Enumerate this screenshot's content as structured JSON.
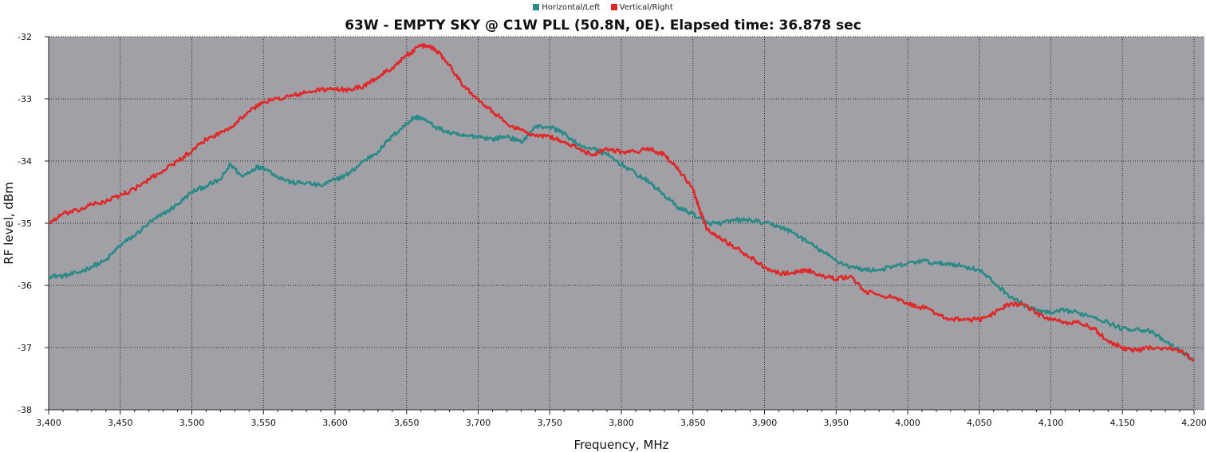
{
  "chart_data": {
    "type": "line",
    "title": "63W - EMPTY SKY @ C1W PLL (50.8N, 0E). Elapsed time: 36.878 sec",
    "xlabel": "Frequency, MHz",
    "ylabel": "RF level, dBm",
    "xlim": [
      3400,
      4200
    ],
    "ylim": [
      -38,
      -32
    ],
    "x_ticks": [
      3400,
      3450,
      3500,
      3550,
      3600,
      3650,
      3700,
      3750,
      3800,
      3850,
      3900,
      3950,
      4000,
      4050,
      4100,
      4150,
      4200
    ],
    "x_tick_labels": [
      "3,400",
      "3,450",
      "3,500",
      "3,550",
      "3,600",
      "3,650",
      "3,700",
      "3,750",
      "3,800",
      "3,850",
      "3,900",
      "3,950",
      "4,000",
      "4,050",
      "4,100",
      "4,150",
      "4,200"
    ],
    "y_ticks": [
      -32,
      -33,
      -34,
      -35,
      -36,
      -37,
      -38
    ],
    "y_tick_labels": [
      "-32",
      "-33",
      "-34",
      "-35",
      "-36",
      "-37",
      "-38"
    ],
    "grid": true,
    "legend_position": "top-center",
    "plot_background": "#a0a0a6",
    "series": [
      {
        "name": "Horizontal/Left",
        "color": "#2a8a88",
        "x": [
          3400,
          3410,
          3420,
          3430,
          3440,
          3450,
          3460,
          3470,
          3480,
          3490,
          3500,
          3510,
          3520,
          3527,
          3535,
          3545,
          3550,
          3560,
          3570,
          3580,
          3590,
          3600,
          3610,
          3620,
          3630,
          3640,
          3650,
          3655,
          3660,
          3670,
          3680,
          3690,
          3700,
          3710,
          3720,
          3730,
          3740,
          3750,
          3760,
          3770,
          3780,
          3790,
          3800,
          3810,
          3820,
          3830,
          3840,
          3850,
          3860,
          3870,
          3880,
          3890,
          3900,
          3910,
          3920,
          3930,
          3940,
          3950,
          3960,
          3970,
          3980,
          3990,
          4000,
          4010,
          4020,
          4030,
          4040,
          4050,
          4060,
          4070,
          4080,
          4090,
          4100,
          4110,
          4120,
          4130,
          4140,
          4150,
          4160,
          4170,
          4180,
          4190,
          4200
        ],
        "values": [
          -35.85,
          -35.85,
          -35.8,
          -35.7,
          -35.6,
          -35.35,
          -35.2,
          -35.0,
          -34.85,
          -34.7,
          -34.5,
          -34.4,
          -34.3,
          -34.05,
          -34.25,
          -34.1,
          -34.1,
          -34.25,
          -34.35,
          -34.35,
          -34.4,
          -34.3,
          -34.2,
          -34.0,
          -33.85,
          -33.6,
          -33.4,
          -33.3,
          -33.3,
          -33.45,
          -33.55,
          -33.6,
          -33.6,
          -33.65,
          -33.6,
          -33.7,
          -33.45,
          -33.45,
          -33.55,
          -33.75,
          -33.8,
          -33.9,
          -34.05,
          -34.2,
          -34.35,
          -34.55,
          -34.75,
          -34.85,
          -35.0,
          -35.0,
          -34.95,
          -34.95,
          -35.0,
          -35.05,
          -35.15,
          -35.3,
          -35.45,
          -35.6,
          -35.7,
          -35.75,
          -35.75,
          -35.7,
          -35.65,
          -35.6,
          -35.65,
          -35.65,
          -35.7,
          -35.75,
          -35.95,
          -36.15,
          -36.3,
          -36.4,
          -36.45,
          -36.4,
          -36.45,
          -36.5,
          -36.6,
          -36.7,
          -36.7,
          -36.75,
          -36.9,
          -37.05,
          -37.2
        ]
      },
      {
        "name": "Vertical/Right",
        "color": "#e02828",
        "x": [
          3400,
          3410,
          3420,
          3430,
          3440,
          3450,
          3460,
          3470,
          3480,
          3490,
          3500,
          3510,
          3520,
          3530,
          3540,
          3550,
          3560,
          3570,
          3580,
          3590,
          3600,
          3610,
          3620,
          3630,
          3640,
          3650,
          3660,
          3665,
          3670,
          3680,
          3690,
          3700,
          3710,
          3720,
          3730,
          3740,
          3750,
          3760,
          3770,
          3780,
          3790,
          3800,
          3810,
          3820,
          3830,
          3840,
          3850,
          3855,
          3860,
          3870,
          3880,
          3890,
          3900,
          3910,
          3920,
          3930,
          3940,
          3950,
          3960,
          3970,
          3980,
          3990,
          4000,
          4010,
          4020,
          4030,
          4040,
          4050,
          4060,
          4070,
          4080,
          4090,
          4100,
          4110,
          4120,
          4130,
          4140,
          4150,
          4160,
          4170,
          4180,
          4190,
          4200
        ],
        "values": [
          -35.0,
          -34.85,
          -34.8,
          -34.7,
          -34.65,
          -34.55,
          -34.45,
          -34.3,
          -34.15,
          -34.0,
          -33.85,
          -33.65,
          -33.55,
          -33.4,
          -33.2,
          -33.05,
          -33.0,
          -32.95,
          -32.9,
          -32.85,
          -32.85,
          -32.85,
          -32.8,
          -32.65,
          -32.5,
          -32.3,
          -32.15,
          -32.15,
          -32.2,
          -32.45,
          -32.8,
          -33.0,
          -33.2,
          -33.4,
          -33.5,
          -33.6,
          -33.6,
          -33.7,
          -33.8,
          -33.9,
          -33.8,
          -33.85,
          -33.85,
          -33.8,
          -33.9,
          -34.15,
          -34.45,
          -34.8,
          -35.1,
          -35.25,
          -35.4,
          -35.55,
          -35.7,
          -35.8,
          -35.8,
          -35.75,
          -35.85,
          -35.9,
          -35.85,
          -36.1,
          -36.15,
          -36.2,
          -36.3,
          -36.35,
          -36.45,
          -36.55,
          -36.55,
          -36.55,
          -36.45,
          -36.3,
          -36.3,
          -36.45,
          -36.55,
          -36.6,
          -36.6,
          -36.7,
          -36.9,
          -37.0,
          -37.05,
          -37.0,
          -37.0,
          -37.05,
          -37.2
        ]
      }
    ]
  }
}
